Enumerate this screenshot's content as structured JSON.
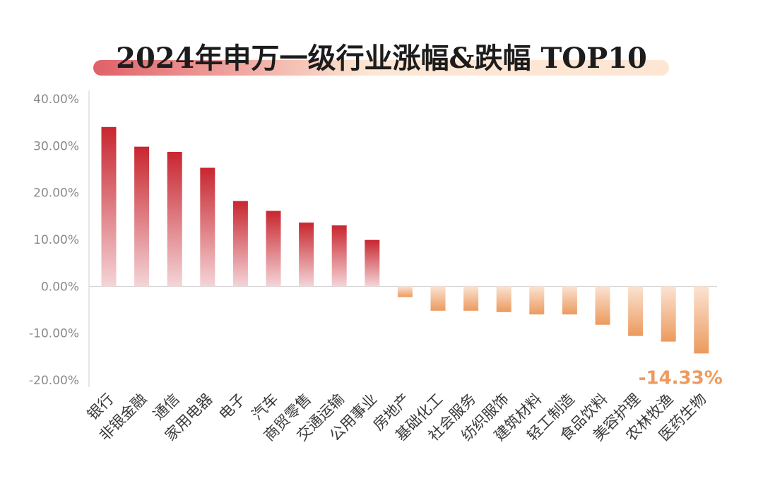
{
  "chart_data": {
    "type": "bar",
    "title": "2024年申万一级行业涨幅&跌幅 TOP10",
    "xlabel": "",
    "ylabel": "",
    "ylim": [
      -20,
      40
    ],
    "yticks": [
      40,
      30,
      20,
      10,
      0,
      -10,
      -20
    ],
    "ytick_labels": [
      "40.00%",
      "30.00%",
      "20.00%",
      "10.00%",
      "0.00%",
      "-10.00%",
      "-20.00%"
    ],
    "categories": [
      "银行",
      "非银金融",
      "通信",
      "家用电器",
      "电子",
      "汽车",
      "商贸零售",
      "交通运输",
      "公用事业",
      "房地产",
      "基础化工",
      "社会服务",
      "纺织服饰",
      "建筑材料",
      "轻工制造",
      "食品饮料",
      "美容护理",
      "农林牧渔",
      "医药生物"
    ],
    "values": [
      34.0,
      29.8,
      28.7,
      25.3,
      18.2,
      16.1,
      13.6,
      13.0,
      9.9,
      -2.3,
      -5.2,
      -5.2,
      -5.5,
      -6.0,
      -6.0,
      -8.2,
      -10.6,
      -11.8,
      -14.33
    ],
    "data_labels": [
      {
        "index": 18,
        "text": "-14.33%"
      }
    ],
    "grid": false,
    "colors": {
      "positive_top": "#c8262f",
      "positive_bottom": "#f4d4d7",
      "negative_top": "#fbe3d2",
      "negative_bottom": "#ec9a5e",
      "label_negative": "#ef9a5c",
      "title_band_left": "#e06068",
      "title_band_right": "#fde6d3",
      "axis": "#cfcfcf"
    }
  }
}
